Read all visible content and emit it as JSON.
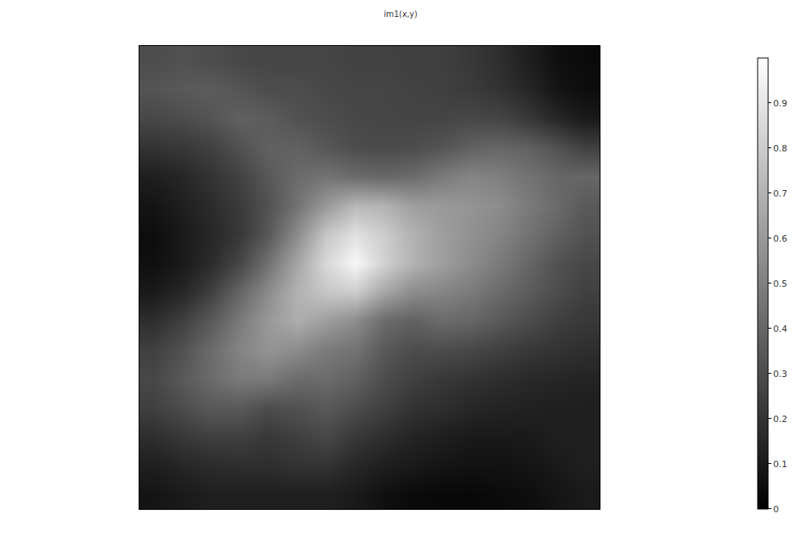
{
  "chart_data": {
    "type": "heatmap",
    "title": "im1(x,y)",
    "tick_labels": false,
    "grid": false,
    "z": [
      [
        0.3,
        0.32,
        0.3,
        0.28,
        0.27,
        0.27,
        0.27,
        0.26,
        0.26,
        0.25,
        0.25,
        0.22,
        0.18,
        0.12,
        0.06,
        0.04
      ],
      [
        0.33,
        0.35,
        0.36,
        0.33,
        0.3,
        0.3,
        0.28,
        0.27,
        0.27,
        0.26,
        0.25,
        0.23,
        0.2,
        0.15,
        0.08,
        0.05
      ],
      [
        0.28,
        0.3,
        0.33,
        0.38,
        0.36,
        0.32,
        0.3,
        0.28,
        0.27,
        0.27,
        0.27,
        0.28,
        0.27,
        0.22,
        0.15,
        0.1
      ],
      [
        0.2,
        0.22,
        0.25,
        0.32,
        0.38,
        0.38,
        0.34,
        0.3,
        0.29,
        0.3,
        0.33,
        0.38,
        0.4,
        0.38,
        0.32,
        0.25
      ],
      [
        0.12,
        0.15,
        0.2,
        0.26,
        0.35,
        0.42,
        0.45,
        0.42,
        0.4,
        0.42,
        0.48,
        0.52,
        0.5,
        0.45,
        0.4,
        0.4
      ],
      [
        0.08,
        0.12,
        0.17,
        0.23,
        0.32,
        0.45,
        0.6,
        0.72,
        0.7,
        0.62,
        0.6,
        0.58,
        0.55,
        0.48,
        0.42,
        0.35
      ],
      [
        0.05,
        0.1,
        0.15,
        0.22,
        0.35,
        0.55,
        0.78,
        0.88,
        0.8,
        0.7,
        0.62,
        0.57,
        0.52,
        0.45,
        0.38,
        0.32
      ],
      [
        0.06,
        0.1,
        0.17,
        0.28,
        0.45,
        0.65,
        0.85,
        0.97,
        0.82,
        0.7,
        0.62,
        0.55,
        0.48,
        0.4,
        0.32,
        0.28
      ],
      [
        0.1,
        0.15,
        0.25,
        0.4,
        0.55,
        0.7,
        0.78,
        0.8,
        0.65,
        0.55,
        0.52,
        0.48,
        0.42,
        0.36,
        0.3,
        0.25
      ],
      [
        0.18,
        0.25,
        0.35,
        0.48,
        0.6,
        0.68,
        0.62,
        0.55,
        0.42,
        0.38,
        0.42,
        0.4,
        0.35,
        0.3,
        0.25,
        0.22
      ],
      [
        0.25,
        0.32,
        0.42,
        0.52,
        0.58,
        0.55,
        0.48,
        0.45,
        0.35,
        0.3,
        0.3,
        0.28,
        0.25,
        0.22,
        0.2,
        0.18
      ],
      [
        0.28,
        0.35,
        0.42,
        0.48,
        0.48,
        0.42,
        0.42,
        0.38,
        0.3,
        0.25,
        0.22,
        0.2,
        0.18,
        0.16,
        0.15,
        0.14
      ],
      [
        0.25,
        0.3,
        0.35,
        0.35,
        0.3,
        0.32,
        0.35,
        0.3,
        0.25,
        0.2,
        0.18,
        0.15,
        0.14,
        0.13,
        0.12,
        0.12
      ],
      [
        0.18,
        0.22,
        0.25,
        0.25,
        0.22,
        0.25,
        0.28,
        0.22,
        0.18,
        0.14,
        0.12,
        0.1,
        0.1,
        0.1,
        0.12,
        0.12
      ],
      [
        0.12,
        0.15,
        0.17,
        0.18,
        0.18,
        0.2,
        0.2,
        0.15,
        0.12,
        0.1,
        0.08,
        0.07,
        0.07,
        0.08,
        0.1,
        0.12
      ],
      [
        0.08,
        0.1,
        0.12,
        0.12,
        0.12,
        0.12,
        0.12,
        0.1,
        0.06,
        0.04,
        0.03,
        0.03,
        0.04,
        0.05,
        0.08,
        0.1
      ]
    ],
    "colorbar": {
      "range": [
        0,
        1
      ],
      "ticks": [
        0,
        0.1,
        0.2,
        0.3,
        0.4,
        0.5,
        0.6,
        0.7,
        0.8,
        0.9
      ]
    }
  }
}
